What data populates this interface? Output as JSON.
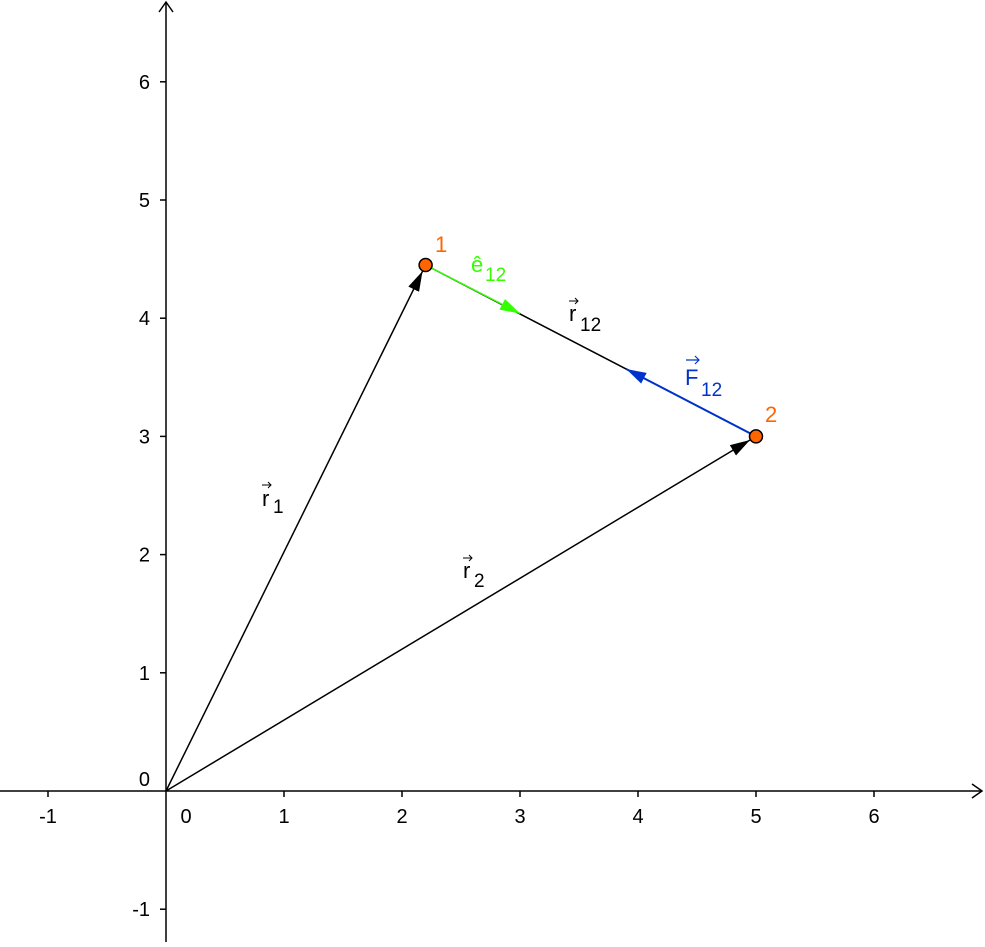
{
  "colors": {
    "axis": "#000000",
    "vector": "#000000",
    "point_fill": "#ff6600",
    "point_label": "#ff6600",
    "unit_vector": "#33ff00",
    "force": "#0033cc"
  },
  "axes": {
    "x_ticks": [
      "-1",
      "0",
      "1",
      "2",
      "3",
      "4",
      "5",
      "6"
    ],
    "y_ticks": [
      "-1",
      "0",
      "1",
      "2",
      "3",
      "4",
      "5",
      "6"
    ],
    "x_range": [
      -1.4,
      7.0
    ],
    "y_range": [
      -1.3,
      6.7
    ]
  },
  "points": [
    {
      "label": "1",
      "x": 2.2,
      "y": 4.45
    },
    {
      "label": "2",
      "x": 5.0,
      "y": 3.0
    }
  ],
  "vectors": {
    "r1": {
      "base": "r",
      "sub": "1",
      "from": [
        0,
        0
      ],
      "to": [
        2.2,
        4.45
      ]
    },
    "r2": {
      "base": "r",
      "sub": "2",
      "from": [
        0,
        0
      ],
      "to": [
        5.0,
        3.0
      ]
    },
    "r12": {
      "base": "r",
      "sub": "12",
      "from": [
        2.2,
        4.45
      ],
      "to": [
        5.0,
        3.0
      ]
    },
    "e12": {
      "base": "ê",
      "sub": "12",
      "from": [
        2.2,
        4.45
      ],
      "to": [
        3.0,
        4.04
      ]
    },
    "F12": {
      "base": "F",
      "sub": "12",
      "from": [
        5.0,
        3.0
      ],
      "to": [
        3.9,
        3.57
      ]
    }
  }
}
